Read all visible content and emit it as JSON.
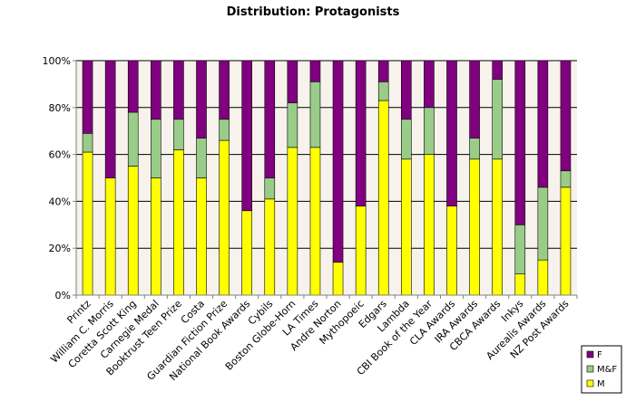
{
  "chart_data": {
    "type": "bar",
    "stacked": true,
    "percent": true,
    "title": "Distribution: Protagonists",
    "xlabel": "",
    "ylabel": "",
    "ylim": [
      0,
      100
    ],
    "yticks": [
      "0%",
      "20%",
      "40%",
      "60%",
      "80%",
      "100%"
    ],
    "legend_position": "bottom-right",
    "categories": [
      "Printz",
      "William C. Morris",
      "Coretta Scott King",
      "Carnegie Medal",
      "Booktrust Teen Prize",
      "Costa",
      "Guardian Fiction Prize",
      "National Book Awards",
      "Cybils",
      "Boston Globe-Horn",
      "LA Times",
      "Andre Norton",
      "Mythopoeic",
      "Edgars",
      "Lambda",
      "CBI Book of the Year",
      "CLA Awards",
      "IRA Awards",
      "CBCA Awards",
      "Inkys",
      "Aurealis Awards",
      "NZ Post Awards"
    ],
    "series": [
      {
        "name": "M",
        "color": "#ffff00",
        "values": [
          61,
          50,
          55,
          50,
          62,
          50,
          66,
          36,
          41,
          63,
          63,
          14,
          38,
          83,
          58,
          60,
          38,
          58,
          58,
          9,
          15,
          46
        ]
      },
      {
        "name": "M&F",
        "color": "#99cc88",
        "values": [
          8,
          0,
          23,
          25,
          13,
          17,
          9,
          0,
          9,
          19,
          28,
          0,
          0,
          8,
          17,
          20,
          0,
          9,
          34,
          21,
          31,
          7
        ]
      },
      {
        "name": "F",
        "color": "#800080",
        "values": [
          31,
          50,
          22,
          25,
          25,
          33,
          25,
          64,
          50,
          18,
          9,
          86,
          62,
          9,
          25,
          20,
          62,
          33,
          8,
          70,
          54,
          47
        ]
      }
    ],
    "legend": [
      {
        "name": "F",
        "color": "#800080"
      },
      {
        "name": "M&F",
        "color": "#99cc88"
      },
      {
        "name": "M",
        "color": "#ffff00"
      }
    ]
  }
}
